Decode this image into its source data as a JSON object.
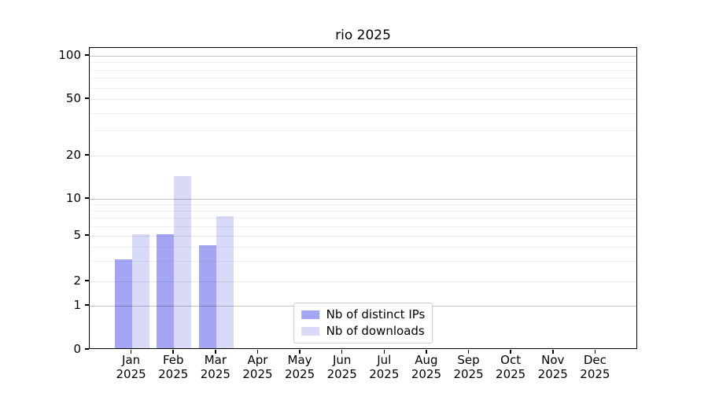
{
  "chart_data": {
    "type": "bar",
    "title": "rio 2025",
    "x_year": "2025",
    "categories": [
      "Jan",
      "Feb",
      "Mar",
      "Apr",
      "May",
      "Jun",
      "Jul",
      "Aug",
      "Sep",
      "Oct",
      "Nov",
      "Dec"
    ],
    "series": [
      {
        "name": "Nb of distinct IPs",
        "color": "#a5a5f5",
        "values": [
          3,
          5,
          4,
          0,
          0,
          0,
          0,
          0,
          0,
          0,
          0,
          0
        ]
      },
      {
        "name": "Nb of downloads",
        "color": "#d9d9f8",
        "values": [
          5,
          14,
          7,
          0,
          0,
          0,
          0,
          0,
          0,
          0,
          0,
          0
        ]
      }
    ],
    "y_ticks": [
      0,
      1,
      2,
      5,
      10,
      20,
      50,
      100
    ],
    "y_minor_ticks": [
      3,
      4,
      6,
      7,
      8,
      9,
      30,
      40,
      60,
      70,
      80,
      90
    ],
    "scale": "log-like",
    "grid": true,
    "legend_position": "lower center"
  }
}
